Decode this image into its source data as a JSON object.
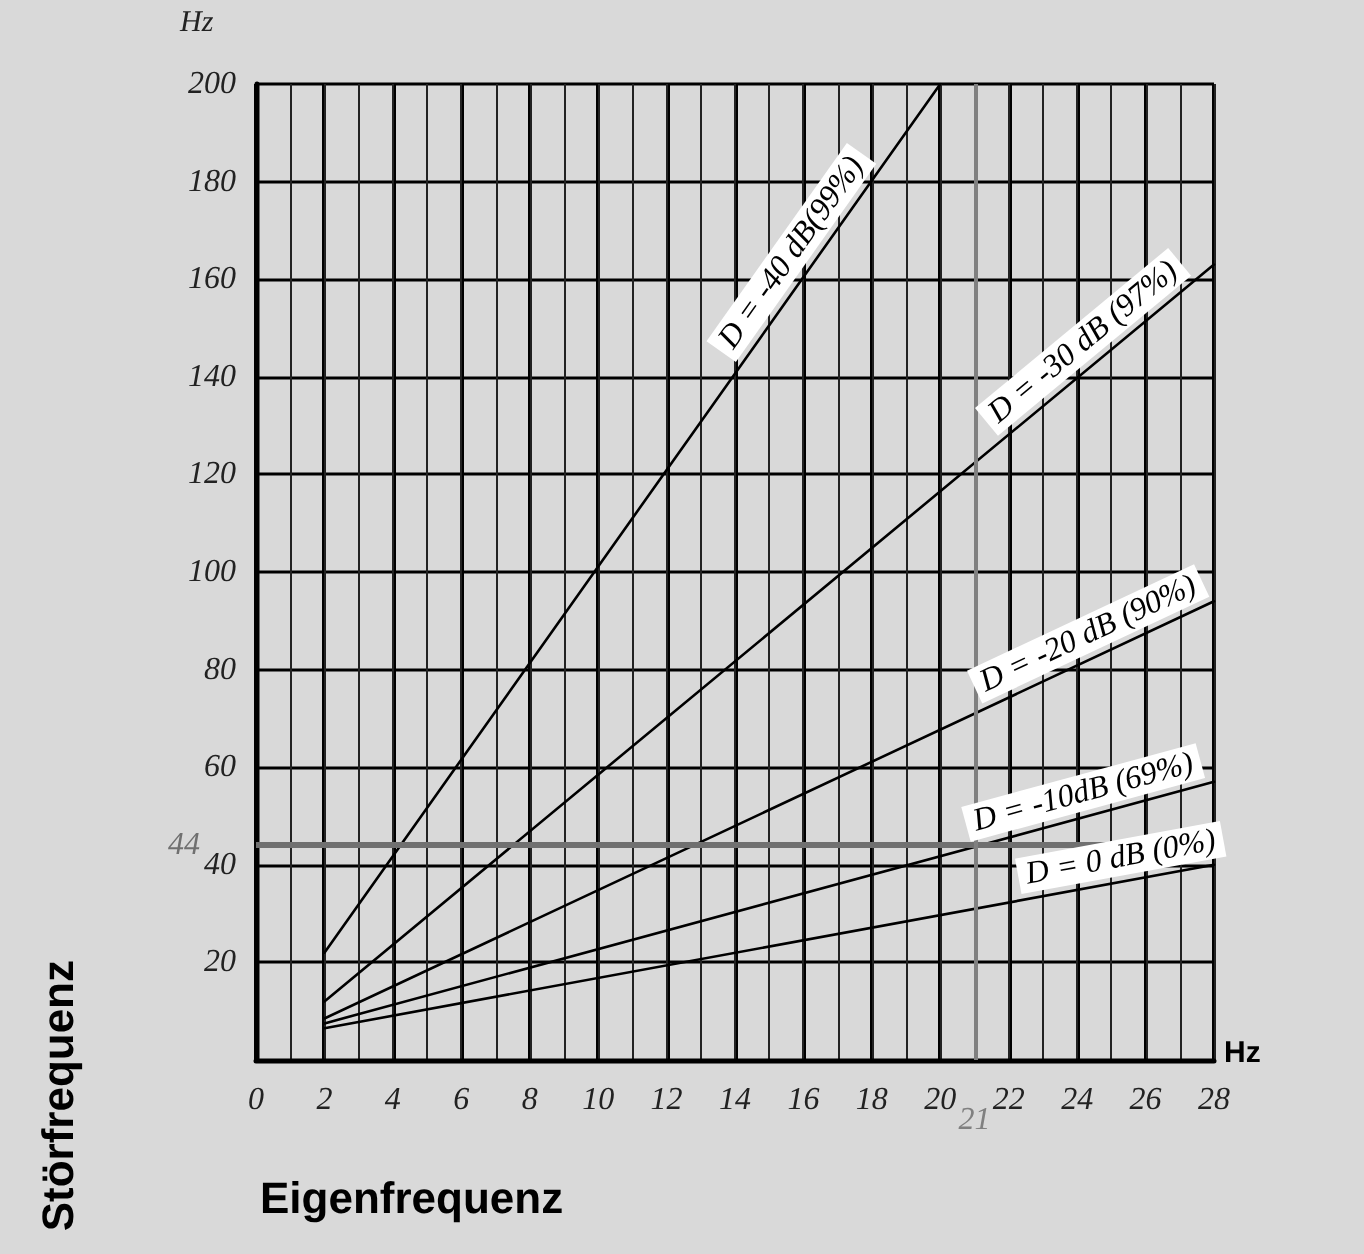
{
  "chart_data": {
    "type": "line",
    "xlabel": "Eigenfrequenz",
    "ylabel": "Störfrequenz",
    "annotations": [
      "Hz",
      "Hz"
    ],
    "xlim": [
      0,
      28
    ],
    "xticks": [
      0,
      2,
      4,
      6,
      8,
      10,
      12,
      14,
      16,
      18,
      20,
      22,
      24,
      26,
      28
    ],
    "ylim": [
      0,
      200
    ],
    "yticks": [
      20,
      40,
      60,
      80,
      100,
      120,
      140,
      160,
      180,
      200
    ],
    "grid": true,
    "legend": false,
    "marker": "none",
    "line_style": "solid",
    "series": [
      {
        "name": "D = -40 dB(99%)",
        "color": "#000000",
        "x": [
          2,
          20
        ],
        "values": [
          22,
          200
        ]
      },
      {
        "name": "D = -30 dB (97%)",
        "color": "#000000",
        "x": [
          2,
          28
        ],
        "values": [
          12,
          163
        ]
      },
      {
        "name": "D = -20 dB (90%)",
        "color": "#000000",
        "x": [
          2,
          28
        ],
        "values": [
          8.5,
          94
        ]
      },
      {
        "name": "D = -10dB (69%)",
        "color": "#000000",
        "x": [
          2,
          28
        ],
        "values": [
          7.5,
          57
        ]
      },
      {
        "name": "D = 0 dB (0%)",
        "color": "#000000",
        "x": [
          2,
          28
        ],
        "values": [
          6.5,
          40
        ]
      }
    ],
    "ref_lines": [
      {
        "axis": "y",
        "value": 44,
        "label": "44",
        "color": "#707070"
      },
      {
        "axis": "x",
        "value": 21,
        "label": "21",
        "color": "#808080"
      }
    ]
  }
}
